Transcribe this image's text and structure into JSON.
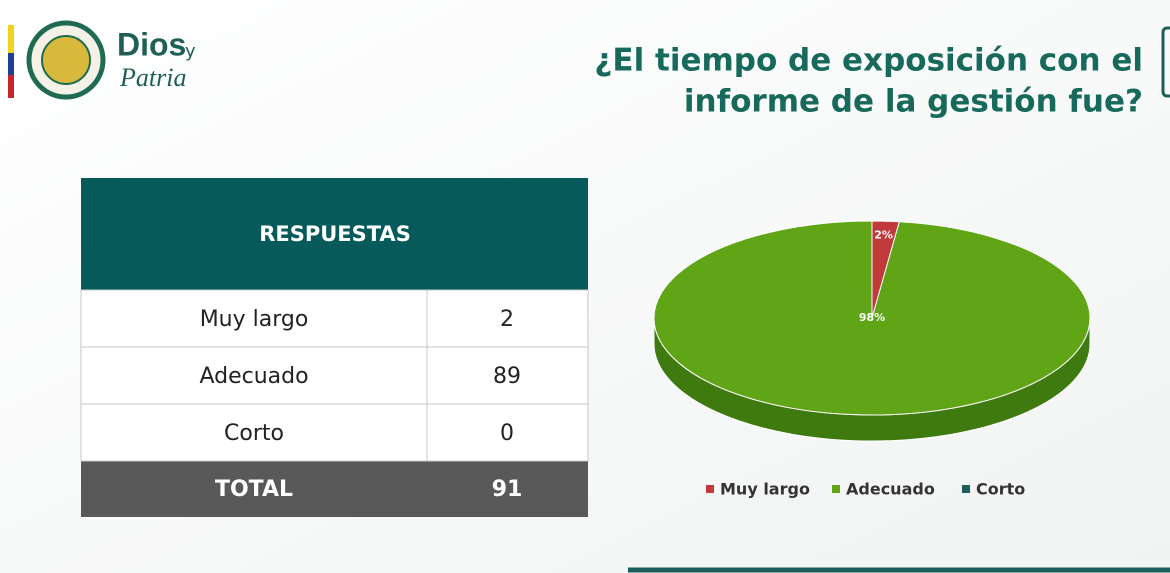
{
  "logo": {
    "word1": "Dios",
    "word2": "y",
    "word3": "Patria"
  },
  "title_lines": [
    "¿El tiempo de exposición con el",
    "informe de la gestión fue?"
  ],
  "table": {
    "header": "RESPUESTAS",
    "rows": [
      [
        "Muy largo",
        2
      ],
      [
        "Adecuado",
        89
      ],
      [
        "Corto",
        0
      ]
    ],
    "total": [
      "TOTAL",
      91
    ]
  },
  "chart_data": {
    "type": "pie",
    "categories": [
      "Muy largo",
      "Adecuado",
      "Corto"
    ],
    "values": [
      2,
      98,
      0
    ],
    "value_labels": [
      "2%",
      "98%",
      null
    ],
    "colors": [
      "#c0393b",
      "#5fa516",
      "#1d5e5a"
    ],
    "legend": "bottom"
  }
}
